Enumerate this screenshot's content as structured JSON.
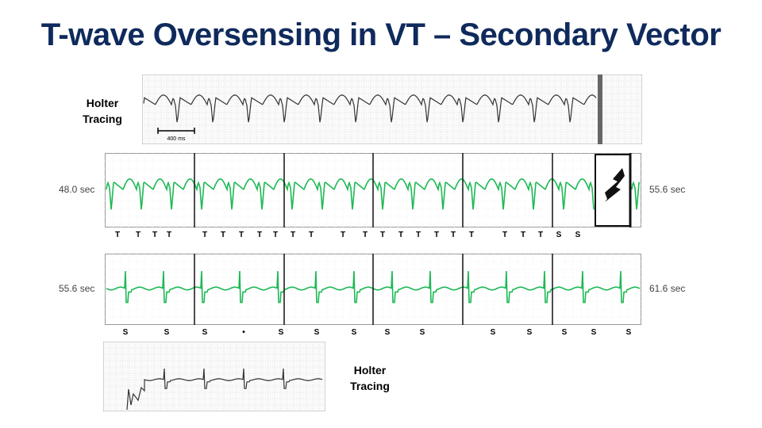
{
  "slide": {
    "title": "T-wave Oversensing in VT – Secondary Vector"
  },
  "holter_top": {
    "label": "Holter Tracing",
    "scale_text": "400 ms"
  },
  "holter_bottom": {
    "label": "Holter Tracing"
  },
  "strip1": {
    "start_time": "48.0 sec",
    "end_time": "55.6 sec",
    "markers": [
      "T",
      "T",
      "T",
      "T",
      "T",
      "T",
      "T",
      "T",
      "T",
      "T",
      "T",
      "T",
      "T",
      "T",
      "T",
      "T",
      "T",
      "T",
      "T",
      "T",
      "T",
      "T",
      "S",
      "S"
    ],
    "shock_icon": "lightning-bolt-icon"
  },
  "strip2": {
    "start_time": "55.6 sec",
    "end_time": "61.6 sec",
    "markers": [
      "S",
      "S",
      "S",
      "•",
      "S",
      "S",
      "S",
      "S",
      "S",
      "S",
      "S",
      "S",
      "S",
      "S"
    ]
  },
  "colors": {
    "title": "#0f2a5c",
    "ecg_trace": "#1db954",
    "holter_trace": "#333333",
    "grid": "#c8c8c8"
  }
}
